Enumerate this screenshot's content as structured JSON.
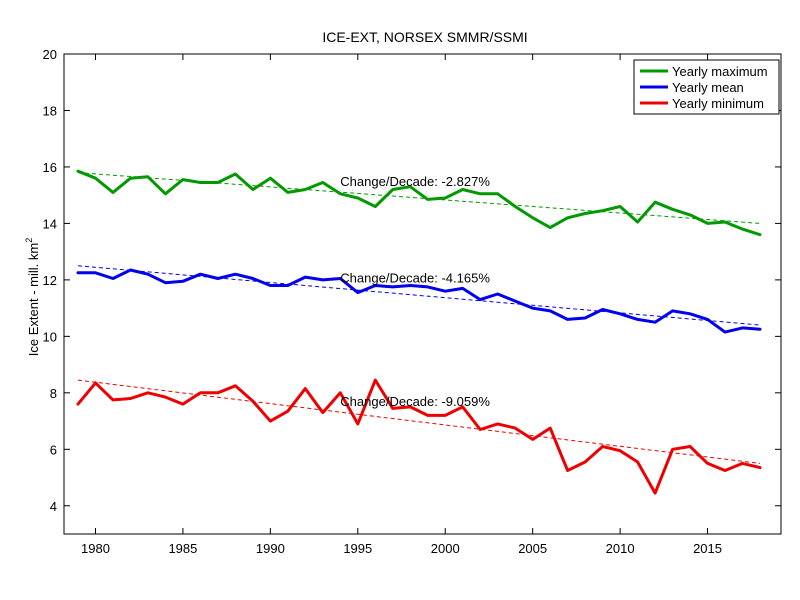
{
  "chart_data": {
    "type": "line",
    "title": "ICE-EXT, NORSEX SMMR/SSMI",
    "ylabel_main": "Ice Extent - mill. km",
    "ylabel_sup": "2",
    "xlim": [
      1978.2,
      2019.2
    ],
    "ylim": [
      3,
      20
    ],
    "x_ticks": [
      1980,
      1985,
      1990,
      1995,
      2000,
      2005,
      2010,
      2015
    ],
    "y_ticks": [
      4,
      6,
      8,
      10,
      12,
      14,
      16,
      18,
      20
    ],
    "grid": false,
    "legend_position": "top-right",
    "x": [
      1979,
      1980,
      1981,
      1982,
      1983,
      1984,
      1985,
      1986,
      1987,
      1988,
      1989,
      1990,
      1991,
      1992,
      1993,
      1994,
      1995,
      1996,
      1997,
      1998,
      1999,
      2000,
      2001,
      2002,
      2003,
      2004,
      2005,
      2006,
      2007,
      2008,
      2009,
      2010,
      2011,
      2012,
      2013,
      2014,
      2015,
      2016,
      2017,
      2018
    ],
    "series": [
      {
        "name": "Yearly maximum",
        "color": "#009900",
        "values": [
          15.85,
          15.6,
          15.1,
          15.6,
          15.65,
          15.05,
          15.55,
          15.45,
          15.45,
          15.75,
          15.2,
          15.6,
          15.1,
          15.2,
          15.45,
          15.05,
          14.9,
          14.6,
          15.2,
          15.3,
          14.85,
          14.9,
          15.2,
          15.05,
          15.05,
          14.6,
          14.2,
          13.85,
          14.2,
          14.35,
          14.45,
          14.6,
          14.05,
          14.75,
          14.5,
          14.3,
          14.0,
          14.05,
          13.8,
          13.6
        ],
        "trend": [
          15.8,
          14.0
        ],
        "annotation": "Change/Decade: -2.827%"
      },
      {
        "name": "Yearly mean",
        "color": "#0000ee",
        "values": [
          12.25,
          12.25,
          12.05,
          12.35,
          12.2,
          11.9,
          11.95,
          12.2,
          12.05,
          12.2,
          12.05,
          11.8,
          11.8,
          12.1,
          12.0,
          12.05,
          11.55,
          11.8,
          11.75,
          11.8,
          11.75,
          11.6,
          11.7,
          11.3,
          11.5,
          11.25,
          11.0,
          10.9,
          10.6,
          10.65,
          10.95,
          10.8,
          10.6,
          10.5,
          10.9,
          10.8,
          10.6,
          10.15,
          10.3,
          10.25
        ],
        "trend": [
          12.5,
          10.4
        ],
        "annotation": "Change/Decade: -4.165%"
      },
      {
        "name": "Yearly minimum",
        "color": "#ee0000",
        "values": [
          7.6,
          8.35,
          7.75,
          7.8,
          8.0,
          7.85,
          7.6,
          8.0,
          8.0,
          8.25,
          7.7,
          7.0,
          7.35,
          8.15,
          7.3,
          8.0,
          6.9,
          8.45,
          7.45,
          7.5,
          7.2,
          7.2,
          7.5,
          6.7,
          6.9,
          6.75,
          6.35,
          6.75,
          5.25,
          5.55,
          6.1,
          5.95,
          5.55,
          4.45,
          6.0,
          6.1,
          5.5,
          5.25,
          5.5,
          5.35
        ],
        "trend": [
          8.45,
          5.5
        ],
        "annotation": "Change/Decade: -9.059%"
      }
    ]
  }
}
